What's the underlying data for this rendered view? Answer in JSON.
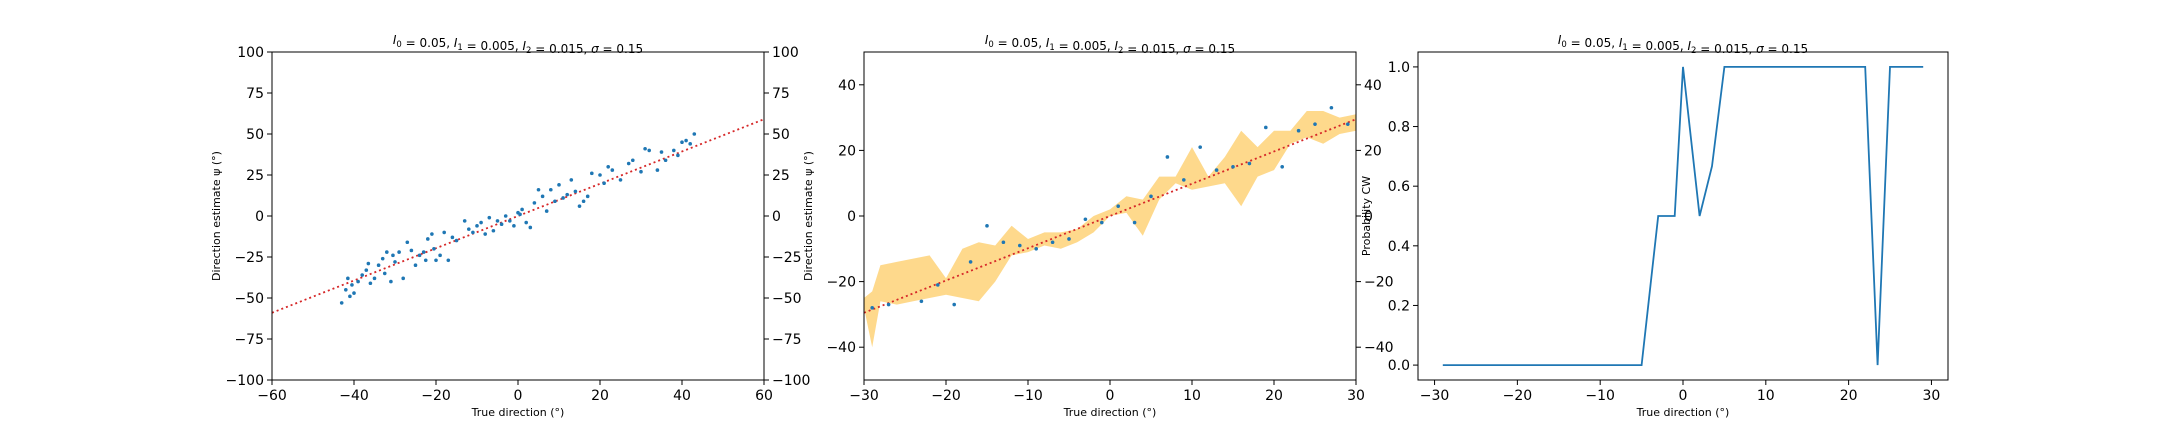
{
  "colors": {
    "scatter": "#1f77b4",
    "fit_line": "#d62728",
    "band": "#fdb92d",
    "curve": "#1f77b4"
  },
  "chart_data": [
    {
      "type": "scatter",
      "title": "$I_0 = 0.05$, $I_1 = 0.005$, $I_2 = 0.015$, $\\sigma = 0.15$",
      "title_parts": [
        {
          "t": "I",
          "s": "i"
        },
        {
          "t": "0",
          "s": "sub"
        },
        {
          "t": " = 0.05, ",
          "s": "n"
        },
        {
          "t": "I",
          "s": "i"
        },
        {
          "t": "1",
          "s": "sub"
        },
        {
          "t": " = 0.005, ",
          "s": "n"
        },
        {
          "t": "I",
          "s": "i"
        },
        {
          "t": "2",
          "s": "sub"
        },
        {
          "t": " = 0.015, ",
          "s": "n"
        },
        {
          "t": "σ",
          "s": "i"
        },
        {
          "t": " = 0.15",
          "s": "n"
        }
      ],
      "xlabel": "True direction (°)",
      "ylabel": "Direction estimate ψ (°)",
      "xlim": [
        -60,
        60
      ],
      "ylim": [
        -100,
        100
      ],
      "xticks": [
        -60,
        -40,
        -20,
        0,
        20,
        40,
        60
      ],
      "yticks": [
        -100,
        -75,
        -50,
        -25,
        0,
        25,
        50,
        75,
        100
      ],
      "right_yticks": [
        -100,
        -75,
        -50,
        -25,
        0,
        25,
        50,
        75,
        100
      ],
      "fit_line": {
        "x": [
          -60,
          60
        ],
        "y": [
          -59,
          59
        ]
      },
      "points": {
        "x": [
          -43,
          -42,
          -41.5,
          -41,
          -40.5,
          -40,
          -39,
          -38,
          -37,
          -36.5,
          -36,
          -35,
          -34,
          -33,
          -32.5,
          -32,
          -31,
          -30.5,
          -30,
          -29,
          -28,
          -27,
          -26,
          -25,
          -24,
          -23,
          -22.5,
          -22,
          -21,
          -20.5,
          -20,
          -19,
          -18,
          -17,
          -16,
          -15,
          -13,
          -12,
          -11,
          -10,
          -9,
          -8,
          -7,
          -6,
          -5,
          -4,
          -3,
          -2,
          -1,
          0,
          0.5,
          1,
          2,
          3,
          4,
          5,
          6,
          7,
          8,
          9,
          10,
          11,
          12,
          13,
          14,
          15,
          16,
          17,
          18,
          20,
          21,
          22,
          23,
          25,
          27,
          28,
          30,
          31,
          32,
          34,
          35,
          36,
          38,
          39,
          40,
          41,
          42,
          43
        ],
        "y": [
          -53,
          -45,
          -38,
          -49,
          -42,
          -47,
          -40,
          -36,
          -33,
          -29,
          -41,
          -38,
          -30,
          -26,
          -35,
          -22,
          -40,
          -24,
          -28,
          -22,
          -38,
          -16,
          -21,
          -30,
          -24,
          -22,
          -27,
          -14,
          -11,
          -20,
          -27,
          -24,
          -10,
          -27,
          -13,
          -15,
          -3,
          -8,
          -10,
          -6,
          -4,
          -11,
          -1,
          -9,
          -3,
          -5,
          0,
          -3,
          -6,
          2,
          1,
          4,
          -4,
          -7,
          8,
          16,
          12,
          3,
          16,
          9,
          19,
          11,
          13,
          22,
          15,
          6,
          9,
          12,
          26,
          25,
          20,
          30,
          28,
          22,
          32,
          34,
          27,
          41,
          40,
          28,
          39,
          34,
          40,
          37,
          45,
          46,
          44,
          50
        ]
      }
    },
    {
      "type": "line",
      "title": "$I_0 = 0.05$, $I_1 = 0.005$, $I_2 = 0.015$, $\\sigma = 0.15$",
      "title_parts": [
        {
          "t": "I",
          "s": "i"
        },
        {
          "t": "0",
          "s": "sub"
        },
        {
          "t": " = 0.05, ",
          "s": "n"
        },
        {
          "t": "I",
          "s": "i"
        },
        {
          "t": "1",
          "s": "sub"
        },
        {
          "t": " = 0.005, ",
          "s": "n"
        },
        {
          "t": "I",
          "s": "i"
        },
        {
          "t": "2",
          "s": "sub"
        },
        {
          "t": " = 0.015, ",
          "s": "n"
        },
        {
          "t": "σ",
          "s": "i"
        },
        {
          "t": " = 0.15",
          "s": "n"
        }
      ],
      "xlabel": "True direction (°)",
      "ylabel": "Direction estimate ψ (°)",
      "xlim": [
        -30,
        30
      ],
      "ylim": [
        -50,
        50
      ],
      "xticks": [
        -30,
        -20,
        -10,
        0,
        10,
        20,
        30
      ],
      "yticks": [
        -40,
        -20,
        0,
        20,
        40
      ],
      "right_yticks": [
        -40,
        -20,
        0,
        20,
        40
      ],
      "fit_line": {
        "x": [
          -30,
          30
        ],
        "y": [
          -29.5,
          29.5
        ]
      },
      "band": {
        "x": [
          -30,
          -29,
          -28,
          -26,
          -24,
          -22,
          -20,
          -18,
          -16,
          -14,
          -12,
          -10,
          -8,
          -6,
          -4,
          -2,
          0,
          2,
          4,
          6,
          8,
          10,
          12,
          14,
          16,
          18,
          20,
          22,
          24,
          26,
          28,
          30
        ],
        "lower": [
          -28,
          -40,
          -26,
          -27,
          -26,
          -25,
          -24,
          -25,
          -26,
          -20,
          -12,
          -11,
          -9,
          -10,
          -8,
          -5,
          0,
          1,
          -6,
          5,
          10,
          8,
          9,
          10,
          3,
          12,
          14,
          22,
          24,
          22,
          25,
          26
        ],
        "upper": [
          -25,
          -23,
          -15,
          -14,
          -13,
          -12,
          -19,
          -10,
          -8,
          -9,
          -3,
          -7,
          -5,
          -5,
          -4,
          0,
          2,
          6,
          5,
          12,
          12,
          21,
          12,
          18,
          26,
          21,
          26,
          26,
          32,
          32,
          30,
          31
        ]
      },
      "points": {
        "x": [
          -29,
          -27,
          -23,
          -21,
          -19,
          -17,
          -15,
          -13,
          -11,
          -9,
          -7,
          -5,
          -3,
          -1,
          1,
          3,
          5,
          7,
          9,
          11,
          13,
          15,
          17,
          19,
          21,
          23,
          25,
          27,
          29
        ],
        "y": [
          -28,
          -27,
          -26,
          -21,
          -27,
          -14,
          -3,
          -8,
          -9,
          -10,
          -8,
          -7,
          -1,
          -2,
          3,
          -2,
          6,
          18,
          11,
          21,
          14,
          15,
          16,
          27,
          15,
          26,
          28,
          33,
          28
        ]
      }
    },
    {
      "type": "line",
      "title": "$I_0 = 0.05$, $I_1 = 0.005$, $I_2 = 0.015$, $\\sigma = 0.15$",
      "title_parts": [
        {
          "t": "I",
          "s": "i"
        },
        {
          "t": "0",
          "s": "sub"
        },
        {
          "t": " = 0.05, ",
          "s": "n"
        },
        {
          "t": "I",
          "s": "i"
        },
        {
          "t": "1",
          "s": "sub"
        },
        {
          "t": " = 0.005, ",
          "s": "n"
        },
        {
          "t": "I",
          "s": "i"
        },
        {
          "t": "2",
          "s": "sub"
        },
        {
          "t": " = 0.015, ",
          "s": "n"
        },
        {
          "t": "σ",
          "s": "i"
        },
        {
          "t": " = 0.15",
          "s": "n"
        }
      ],
      "xlabel": "True direction (°)",
      "ylabel": "Probability CW",
      "xlim": [
        -32,
        32
      ],
      "ylim": [
        -0.05,
        1.05
      ],
      "xticks": [
        -30,
        -20,
        -10,
        0,
        10,
        20,
        30
      ],
      "yticks": [
        0.0,
        0.2,
        0.4,
        0.6,
        0.8,
        1.0
      ],
      "series": [
        {
          "x": [
            -29,
            -27,
            -25,
            -23,
            -21,
            -19,
            -17,
            -15,
            -13,
            -11,
            -9,
            -7,
            -5,
            -3,
            -1,
            0,
            2,
            3.5,
            5,
            7,
            9,
            11,
            13,
            15,
            17,
            19,
            21,
            22,
            23.5,
            25,
            27,
            29
          ],
          "y": [
            0,
            0,
            0,
            0,
            0,
            0,
            0,
            0,
            0,
            0,
            0,
            0,
            0,
            0.5,
            0.5,
            1,
            0.5,
            0.667,
            1,
            1,
            1,
            1,
            1,
            1,
            1,
            1,
            1,
            1,
            0,
            1,
            1,
            1
          ]
        }
      ]
    }
  ]
}
